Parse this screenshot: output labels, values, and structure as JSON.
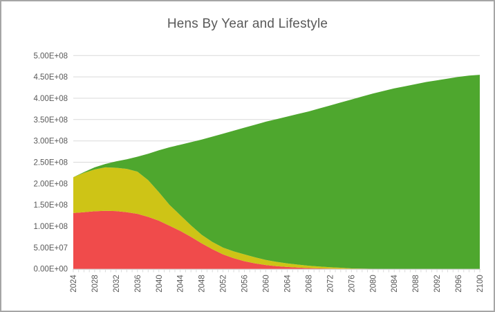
{
  "chart_data": {
    "type": "area",
    "stacked": true,
    "title": "Hens By Year and Lifestyle",
    "xlabel": "",
    "ylabel": "",
    "legend": "none",
    "grid": true,
    "xlim": [
      2024,
      2100
    ],
    "ylim": [
      0,
      500000000.0
    ],
    "x": [
      2024,
      2026,
      2028,
      2030,
      2032,
      2034,
      2036,
      2038,
      2040,
      2042,
      2044,
      2046,
      2048,
      2050,
      2052,
      2054,
      2056,
      2058,
      2060,
      2062,
      2064,
      2066,
      2068,
      2070,
      2072,
      2074,
      2076,
      2078,
      2080,
      2082,
      2084,
      2086,
      2088,
      2090,
      2092,
      2094,
      2096,
      2098,
      2100
    ],
    "series": [
      {
        "name": "red-bottom-series",
        "color": "#F04B4B",
        "values": [
          131000000.0,
          133000000.0,
          135000000.0,
          136000000.0,
          135500000.0,
          133000000.0,
          129000000.0,
          122000000.0,
          113000000.0,
          101000000.0,
          89000000.0,
          75000000.0,
          60000000.0,
          46000000.0,
          34000000.0,
          25000000.0,
          18000000.0,
          13000000.0,
          9000000.0,
          6300000.0,
          4500000.0,
          3000000.0,
          2000000.0,
          1200000.0,
          700000.0,
          400000.0,
          200000.0,
          100000.0,
          100000.0,
          0,
          0,
          0,
          0,
          0,
          0,
          0,
          0,
          0,
          0
        ]
      },
      {
        "name": "yellow-middle-series",
        "color": "#CEC416",
        "values": [
          84000000.0,
          92000000.0,
          98000000.0,
          102000000.0,
          101500000.0,
          101500000.0,
          99000000.0,
          86000000.0,
          67000000.0,
          49000000.0,
          37000000.0,
          27000000.0,
          20000000.0,
          17000000.0,
          16000000.0,
          16000000.0,
          16000000.0,
          14000000.0,
          12000000.0,
          10200000.0,
          8500000.0,
          7000000.0,
          5500000.0,
          4300000.0,
          3300000.0,
          2400000.0,
          1000000.0,
          500000.0,
          100000.0,
          0,
          0,
          0,
          0,
          0,
          0,
          0,
          0,
          0,
          0
        ]
      },
      {
        "name": "green-top-series",
        "color": "#4EA72E",
        "values": [
          0,
          2000000.0,
          5000000.0,
          8000000.0,
          15000000.0,
          22500000.0,
          35000000.0,
          62000000.0,
          98000000.0,
          135000000.0,
          165000000.0,
          195000000.0,
          223000000.0,
          247000000.0,
          267000000.0,
          283000000.0,
          297000000.0,
          311000000.0,
          324000000.0,
          334500000.0,
          344000000.0,
          353000000.0,
          361500000.0,
          370500000.0,
          379000000.0,
          387200000.0,
          395700000.0,
          403400000.0,
          410700000.0,
          417000000.0,
          423000000.0,
          428000000.0,
          433000000.0,
          438000000.0,
          442000000.0,
          446000000.0,
          450000000.0,
          453000000.0,
          455000000.0
        ]
      }
    ],
    "x_ticks": [
      2024,
      2028,
      2032,
      2036,
      2040,
      2044,
      2048,
      2052,
      2056,
      2060,
      2064,
      2068,
      2072,
      2076,
      2080,
      2084,
      2088,
      2092,
      2096,
      2100
    ],
    "x_tick_labels": [
      "2024",
      "2028",
      "2032",
      "2036",
      "2040",
      "2044",
      "2048",
      "2052",
      "2056",
      "2060",
      "2064",
      "2068",
      "2072",
      "2076",
      "2080",
      "2084",
      "2088",
      "2092",
      "2096",
      "2100"
    ],
    "y_ticks": [
      {
        "value": 0,
        "label": "0.00E+00"
      },
      {
        "value": 50000000.0,
        "label": "5.00E+07"
      },
      {
        "value": 100000000.0,
        "label": "1.00E+08"
      },
      {
        "value": 150000000.0,
        "label": "1.50E+08"
      },
      {
        "value": 200000000.0,
        "label": "2.00E+08"
      },
      {
        "value": 250000000.0,
        "label": "2.50E+08"
      },
      {
        "value": 300000000.0,
        "label": "3.00E+08"
      },
      {
        "value": 350000000.0,
        "label": "3.50E+08"
      },
      {
        "value": 400000000.0,
        "label": "4.00E+08"
      },
      {
        "value": 450000000.0,
        "label": "4.50E+08"
      },
      {
        "value": 500000000.0,
        "label": "5.00E+08"
      }
    ],
    "colors": {
      "gridline": "#D9D9D9",
      "axis_tick": "#D9D9D9",
      "axis_text": "#595959",
      "border": "#A6A6A6",
      "background": "#FFFFFF"
    }
  }
}
